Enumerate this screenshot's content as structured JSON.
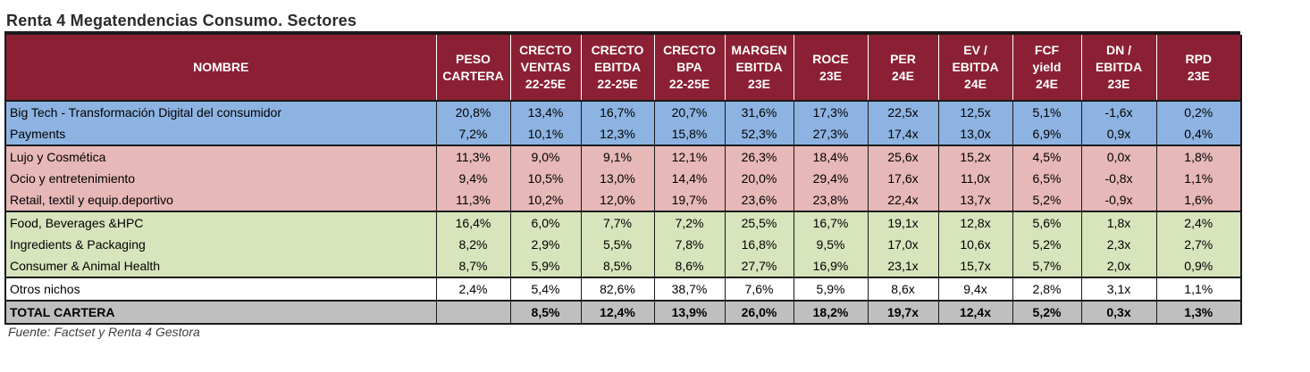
{
  "title": "Renta 4 Megatendencias Consumo. Sectores",
  "headers": [
    [
      "NOMBRE"
    ],
    [
      "PESO",
      "CARTERA"
    ],
    [
      "CRECTO",
      "VENTAS",
      "22-25E"
    ],
    [
      "CRECTO",
      "EBITDA",
      "22-25E"
    ],
    [
      "CRECTO",
      "BPA",
      "22-25E"
    ],
    [
      "MARGEN",
      "EBITDA",
      "23E"
    ],
    [
      "ROCE",
      "23E"
    ],
    [
      "PER",
      "24E"
    ],
    [
      "EV /",
      "EBITDA",
      "24E"
    ],
    [
      "FCF",
      "yield",
      "24E"
    ],
    [
      "DN /",
      "EBITDA",
      "23E"
    ],
    [
      "RPD",
      "23E"
    ]
  ],
  "rows": [
    {
      "group": "blue",
      "cells": [
        "Big Tech - Transformación Digital del consumidor",
        "20,8%",
        "13,4%",
        "16,7%",
        "20,7%",
        "31,6%",
        "17,3%",
        "22,5x",
        "12,5x",
        "5,1%",
        "-1,6x",
        "0,2%"
      ]
    },
    {
      "group": "blue",
      "cells": [
        "Payments",
        "7,2%",
        "10,1%",
        "12,3%",
        "15,8%",
        "52,3%",
        "27,3%",
        "17,4x",
        "13,0x",
        "6,9%",
        "0,9x",
        "0,4%"
      ]
    },
    {
      "group": "pink",
      "cells": [
        "Lujo y Cosmética",
        "11,3%",
        "9,0%",
        "9,1%",
        "12,1%",
        "26,3%",
        "18,4%",
        "25,6x",
        "15,2x",
        "4,5%",
        "0,0x",
        "1,8%"
      ]
    },
    {
      "group": "pink",
      "cells": [
        "Ocio y entretenimiento",
        "9,4%",
        "10,5%",
        "13,0%",
        "14,4%",
        "20,0%",
        "29,4%",
        "17,6x",
        "11,0x",
        "6,5%",
        "-0,8x",
        "1,1%"
      ]
    },
    {
      "group": "pink",
      "cells": [
        "Retail, textil y equip.deportivo",
        "11,3%",
        "10,2%",
        "12,0%",
        "19,7%",
        "23,6%",
        "23,8%",
        "22,4x",
        "13,7x",
        "5,2%",
        "-0,9x",
        "1,6%"
      ]
    },
    {
      "group": "green",
      "cells": [
        "Food, Beverages &HPC",
        "16,4%",
        "6,0%",
        "7,7%",
        "7,2%",
        "25,5%",
        "16,7%",
        "19,1x",
        "12,8x",
        "5,6%",
        "1,8x",
        "2,4%"
      ]
    },
    {
      "group": "green",
      "cells": [
        "Ingredients & Packaging",
        "8,2%",
        "2,9%",
        "5,5%",
        "7,8%",
        "16,8%",
        "9,5%",
        "17,0x",
        "10,6x",
        "5,2%",
        "2,3x",
        "2,7%"
      ]
    },
    {
      "group": "green",
      "cells": [
        "Consumer & Animal Health",
        "8,7%",
        "5,9%",
        "8,5%",
        "8,6%",
        "27,7%",
        "16,9%",
        "23,1x",
        "15,7x",
        "5,7%",
        "2,0x",
        "0,9%"
      ]
    },
    {
      "group": "white",
      "cells": [
        "Otros nichos",
        "2,4%",
        "5,4%",
        "82,6%",
        "38,7%",
        "7,6%",
        "5,9%",
        "8,6x",
        "9,4x",
        "2,8%",
        "3,1x",
        "1,1%"
      ]
    }
  ],
  "total": [
    "TOTAL CARTERA",
    "",
    "8,5%",
    "12,4%",
    "13,9%",
    "26,0%",
    "18,2%",
    "19,7x",
    "12,4x",
    "5,2%",
    "0,3x",
    "1,3%"
  ],
  "source": "Fuente: Factset y Renta 4 Gestora",
  "colors": {
    "header_bg": "#8b2034",
    "blue_group": "#8db3e2",
    "pink_group": "#e6b8b7",
    "green_group": "#d7e4bc",
    "total_bg": "#bfbfbf"
  }
}
